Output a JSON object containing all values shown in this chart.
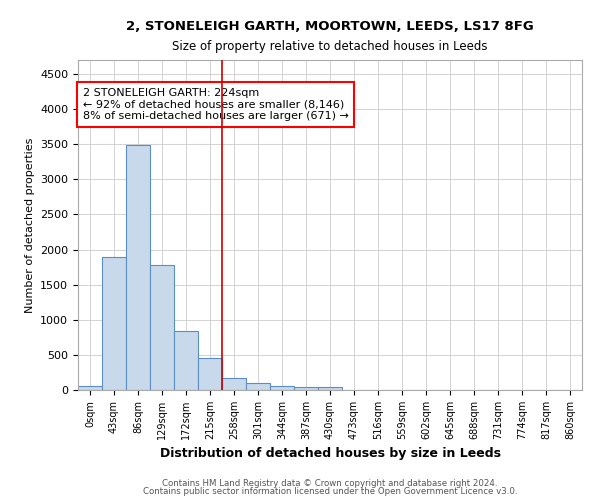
{
  "title1": "2, STONELEIGH GARTH, MOORTOWN, LEEDS, LS17 8FG",
  "title2": "Size of property relative to detached houses in Leeds",
  "xlabel": "Distribution of detached houses by size in Leeds",
  "ylabel": "Number of detached properties",
  "bar_labels": [
    "0sqm",
    "43sqm",
    "86sqm",
    "129sqm",
    "172sqm",
    "215sqm",
    "258sqm",
    "301sqm",
    "344sqm",
    "387sqm",
    "430sqm",
    "473sqm",
    "516sqm",
    "559sqm",
    "602sqm",
    "645sqm",
    "688sqm",
    "731sqm",
    "774sqm",
    "817sqm",
    "860sqm"
  ],
  "bar_values": [
    50,
    1900,
    3490,
    1775,
    840,
    455,
    165,
    100,
    60,
    45,
    38,
    0,
    0,
    0,
    0,
    0,
    0,
    0,
    0,
    0,
    0
  ],
  "bar_color": "#c9d9ec",
  "bar_edgecolor": "#5b8ec4",
  "vline_color": "#cc0000",
  "vline_position": 5.5,
  "annotation_line1": "2 STONELEIGH GARTH: 224sqm",
  "annotation_line2": "← 92% of detached houses are smaller (8,146)",
  "annotation_line3": "8% of semi-detached houses are larger (671) →",
  "ylim": [
    0,
    4700
  ],
  "yticks": [
    0,
    500,
    1000,
    1500,
    2000,
    2500,
    3000,
    3500,
    4000,
    4500
  ],
  "footer1": "Contains HM Land Registry data © Crown copyright and database right 2024.",
  "footer2": "Contains public sector information licensed under the Open Government Licence v3.0.",
  "background_color": "#ffffff",
  "grid_color": "#cccccc"
}
